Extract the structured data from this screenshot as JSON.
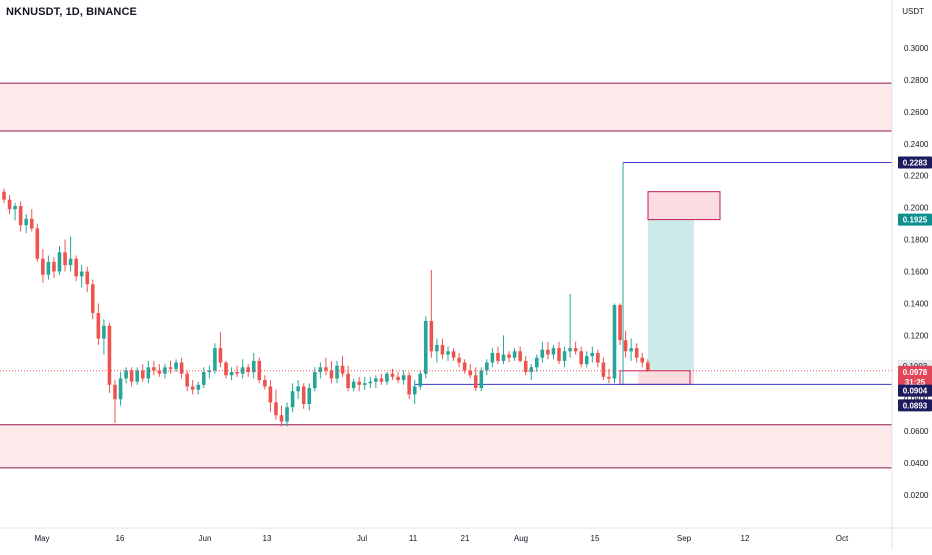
{
  "header": {
    "symbol_title": "NKNUSDT, 1D, BINANCE",
    "currency": "USDT"
  },
  "colors": {
    "up": "#26a69a",
    "down": "#ef5350",
    "zone_fill": "#fde8ea",
    "zone_line": "#8e1b4f",
    "target_fill": "#cdebe8",
    "stop_fill": "#fbdde1",
    "blue_line": "#3a3ad1",
    "navy_badge": "#1e1a5e",
    "teal_badge": "#0e8f8f",
    "red_badge": "#e04658",
    "grey_badge": "#e9e9ec"
  },
  "chart_data": {
    "type": "candlestick",
    "y_axis": {
      "min": 0.0,
      "max": 0.32,
      "ticks": [
        "0.3000",
        "0.2800",
        "0.2600",
        "0.2400",
        "0.2200",
        "0.2000",
        "0.1800",
        "0.1600",
        "0.1400",
        "0.1200",
        "0.1000",
        "0.0800",
        "0.0600",
        "0.0400",
        "0.0200"
      ]
    },
    "x_axis": {
      "ticks": [
        "May",
        "16",
        "Jun",
        "13",
        "Jul",
        "11",
        "21",
        "Aug",
        "15",
        "Sep",
        "12",
        "Oct"
      ]
    },
    "price_badges": [
      {
        "text": "0.2283",
        "style": "navy"
      },
      {
        "text": "0.1925",
        "style": "teal"
      },
      {
        "text": "0.1003",
        "style": "grey"
      },
      {
        "text": "0.0978",
        "style": "red"
      },
      {
        "text": "31:25",
        "style": "red_sub"
      },
      {
        "text": "0.0904",
        "style": "navy"
      },
      {
        "text": "0.0893",
        "style": "navy"
      }
    ],
    "horizontal_lines": [
      0.278,
      0.248,
      0.064,
      0.037,
      0.2283,
      0.0893
    ],
    "zones": [
      {
        "name": "upper-resistance-zone",
        "from": 0.248,
        "to": 0.278
      },
      {
        "name": "lower-support-zone",
        "from": 0.037,
        "to": 0.064
      }
    ],
    "candles": [
      [
        0.21,
        0.212,
        0.203,
        0.205
      ],
      [
        0.205,
        0.208,
        0.196,
        0.199
      ],
      [
        0.199,
        0.203,
        0.192,
        0.201
      ],
      [
        0.201,
        0.204,
        0.185,
        0.189
      ],
      [
        0.189,
        0.196,
        0.184,
        0.193
      ],
      [
        0.193,
        0.199,
        0.185,
        0.187
      ],
      [
        0.187,
        0.19,
        0.166,
        0.168
      ],
      [
        0.168,
        0.174,
        0.153,
        0.158
      ],
      [
        0.158,
        0.17,
        0.155,
        0.166
      ],
      [
        0.166,
        0.169,
        0.156,
        0.16
      ],
      [
        0.16,
        0.176,
        0.158,
        0.172
      ],
      [
        0.172,
        0.18,
        0.16,
        0.164
      ],
      [
        0.164,
        0.182,
        0.16,
        0.168
      ],
      [
        0.168,
        0.17,
        0.154,
        0.157
      ],
      [
        0.157,
        0.164,
        0.15,
        0.16
      ],
      [
        0.16,
        0.163,
        0.147,
        0.152
      ],
      [
        0.152,
        0.155,
        0.13,
        0.134
      ],
      [
        0.134,
        0.14,
        0.114,
        0.118
      ],
      [
        0.118,
        0.13,
        0.108,
        0.126
      ],
      [
        0.126,
        0.128,
        0.084,
        0.089
      ],
      [
        0.089,
        0.092,
        0.065,
        0.08
      ],
      [
        0.08,
        0.097,
        0.076,
        0.093
      ],
      [
        0.093,
        0.1,
        0.09,
        0.098
      ],
      [
        0.098,
        0.1,
        0.088,
        0.091
      ],
      [
        0.091,
        0.1,
        0.089,
        0.098
      ],
      [
        0.098,
        0.102,
        0.091,
        0.093
      ],
      [
        0.093,
        0.104,
        0.09,
        0.1
      ],
      [
        0.1,
        0.104,
        0.095,
        0.098
      ],
      [
        0.098,
        0.102,
        0.094,
        0.096
      ],
      [
        0.096,
        0.102,
        0.093,
        0.1
      ],
      [
        0.1,
        0.104,
        0.096,
        0.099
      ],
      [
        0.099,
        0.105,
        0.097,
        0.103
      ],
      [
        0.103,
        0.106,
        0.093,
        0.096
      ],
      [
        0.096,
        0.098,
        0.085,
        0.088
      ],
      [
        0.088,
        0.092,
        0.083,
        0.086
      ],
      [
        0.086,
        0.091,
        0.083,
        0.089
      ],
      [
        0.089,
        0.1,
        0.087,
        0.097
      ],
      [
        0.097,
        0.101,
        0.093,
        0.098
      ],
      [
        0.098,
        0.115,
        0.096,
        0.112
      ],
      [
        0.112,
        0.122,
        0.1,
        0.103
      ],
      [
        0.103,
        0.104,
        0.093,
        0.095
      ],
      [
        0.095,
        0.1,
        0.092,
        0.097
      ],
      [
        0.097,
        0.101,
        0.094,
        0.096
      ],
      [
        0.096,
        0.105,
        0.093,
        0.1
      ],
      [
        0.1,
        0.102,
        0.094,
        0.097
      ],
      [
        0.097,
        0.109,
        0.093,
        0.104
      ],
      [
        0.104,
        0.106,
        0.09,
        0.092
      ],
      [
        0.092,
        0.095,
        0.086,
        0.088
      ],
      [
        0.088,
        0.092,
        0.072,
        0.078
      ],
      [
        0.078,
        0.086,
        0.067,
        0.07
      ],
      [
        0.07,
        0.076,
        0.063,
        0.066
      ],
      [
        0.066,
        0.078,
        0.063,
        0.075
      ],
      [
        0.075,
        0.09,
        0.072,
        0.085
      ],
      [
        0.085,
        0.092,
        0.08,
        0.088
      ],
      [
        0.088,
        0.09,
        0.074,
        0.077
      ],
      [
        0.077,
        0.09,
        0.073,
        0.087
      ],
      [
        0.087,
        0.1,
        0.085,
        0.097
      ],
      [
        0.097,
        0.103,
        0.093,
        0.1
      ],
      [
        0.1,
        0.106,
        0.095,
        0.098
      ],
      [
        0.098,
        0.104,
        0.09,
        0.093
      ],
      [
        0.093,
        0.104,
        0.09,
        0.101
      ],
      [
        0.101,
        0.107,
        0.094,
        0.096
      ],
      [
        0.096,
        0.101,
        0.085,
        0.087
      ],
      [
        0.087,
        0.093,
        0.085,
        0.091
      ],
      [
        0.091,
        0.094,
        0.085,
        0.089
      ],
      [
        0.089,
        0.094,
        0.086,
        0.09
      ],
      [
        0.09,
        0.094,
        0.087,
        0.091
      ],
      [
        0.091,
        0.095,
        0.087,
        0.093
      ],
      [
        0.093,
        0.096,
        0.089,
        0.091
      ],
      [
        0.091,
        0.097,
        0.089,
        0.096
      ],
      [
        0.096,
        0.099,
        0.092,
        0.094
      ],
      [
        0.094,
        0.097,
        0.09,
        0.092
      ],
      [
        0.092,
        0.098,
        0.089,
        0.095
      ],
      [
        0.095,
        0.097,
        0.08,
        0.083
      ],
      [
        0.083,
        0.092,
        0.077,
        0.088
      ],
      [
        0.088,
        0.098,
        0.086,
        0.096
      ],
      [
        0.096,
        0.132,
        0.093,
        0.129
      ],
      [
        0.129,
        0.161,
        0.106,
        0.11
      ],
      [
        0.11,
        0.118,
        0.103,
        0.114
      ],
      [
        0.114,
        0.118,
        0.105,
        0.108
      ],
      [
        0.108,
        0.113,
        0.104,
        0.11
      ],
      [
        0.11,
        0.112,
        0.104,
        0.106
      ],
      [
        0.106,
        0.109,
        0.1,
        0.103
      ],
      [
        0.103,
        0.105,
        0.096,
        0.098
      ],
      [
        0.098,
        0.102,
        0.093,
        0.095
      ],
      [
        0.095,
        0.1,
        0.085,
        0.087
      ],
      [
        0.087,
        0.1,
        0.085,
        0.098
      ],
      [
        0.098,
        0.105,
        0.095,
        0.103
      ],
      [
        0.103,
        0.112,
        0.1,
        0.109
      ],
      [
        0.109,
        0.113,
        0.102,
        0.104
      ],
      [
        0.104,
        0.12,
        0.102,
        0.108
      ],
      [
        0.108,
        0.11,
        0.103,
        0.106
      ],
      [
        0.106,
        0.112,
        0.104,
        0.11
      ],
      [
        0.11,
        0.113,
        0.103,
        0.104
      ],
      [
        0.104,
        0.107,
        0.095,
        0.097
      ],
      [
        0.097,
        0.102,
        0.092,
        0.1
      ],
      [
        0.1,
        0.108,
        0.097,
        0.106
      ],
      [
        0.106,
        0.116,
        0.103,
        0.111
      ],
      [
        0.111,
        0.116,
        0.105,
        0.108
      ],
      [
        0.108,
        0.114,
        0.105,
        0.112
      ],
      [
        0.112,
        0.116,
        0.102,
        0.104
      ],
      [
        0.104,
        0.113,
        0.1,
        0.11
      ],
      [
        0.11,
        0.146,
        0.106,
        0.112
      ],
      [
        0.112,
        0.116,
        0.108,
        0.11
      ],
      [
        0.11,
        0.113,
        0.1,
        0.102
      ],
      [
        0.102,
        0.11,
        0.1,
        0.107
      ],
      [
        0.107,
        0.113,
        0.103,
        0.109
      ],
      [
        0.109,
        0.111,
        0.1,
        0.103
      ],
      [
        0.103,
        0.106,
        0.092,
        0.094
      ],
      [
        0.094,
        0.099,
        0.09,
        0.093
      ],
      [
        0.093,
        0.14,
        0.09,
        0.139
      ],
      [
        0.139,
        0.14,
        0.114,
        0.117
      ],
      [
        0.117,
        0.123,
        0.106,
        0.11
      ],
      [
        0.11,
        0.118,
        0.104,
        0.112
      ],
      [
        0.112,
        0.115,
        0.103,
        0.106
      ],
      [
        0.106,
        0.109,
        0.1,
        0.103
      ],
      [
        0.103,
        0.105,
        0.097,
        0.0978
      ]
    ],
    "long_position": {
      "entry": 0.0978,
      "stop": 0.0893,
      "target": 0.1925,
      "stop_zone_markers": [
        {
          "from": 0.0893,
          "to": 0.0978
        }
      ],
      "take_profit_box": {
        "from": 0.1925,
        "to": 0.21
      }
    }
  }
}
